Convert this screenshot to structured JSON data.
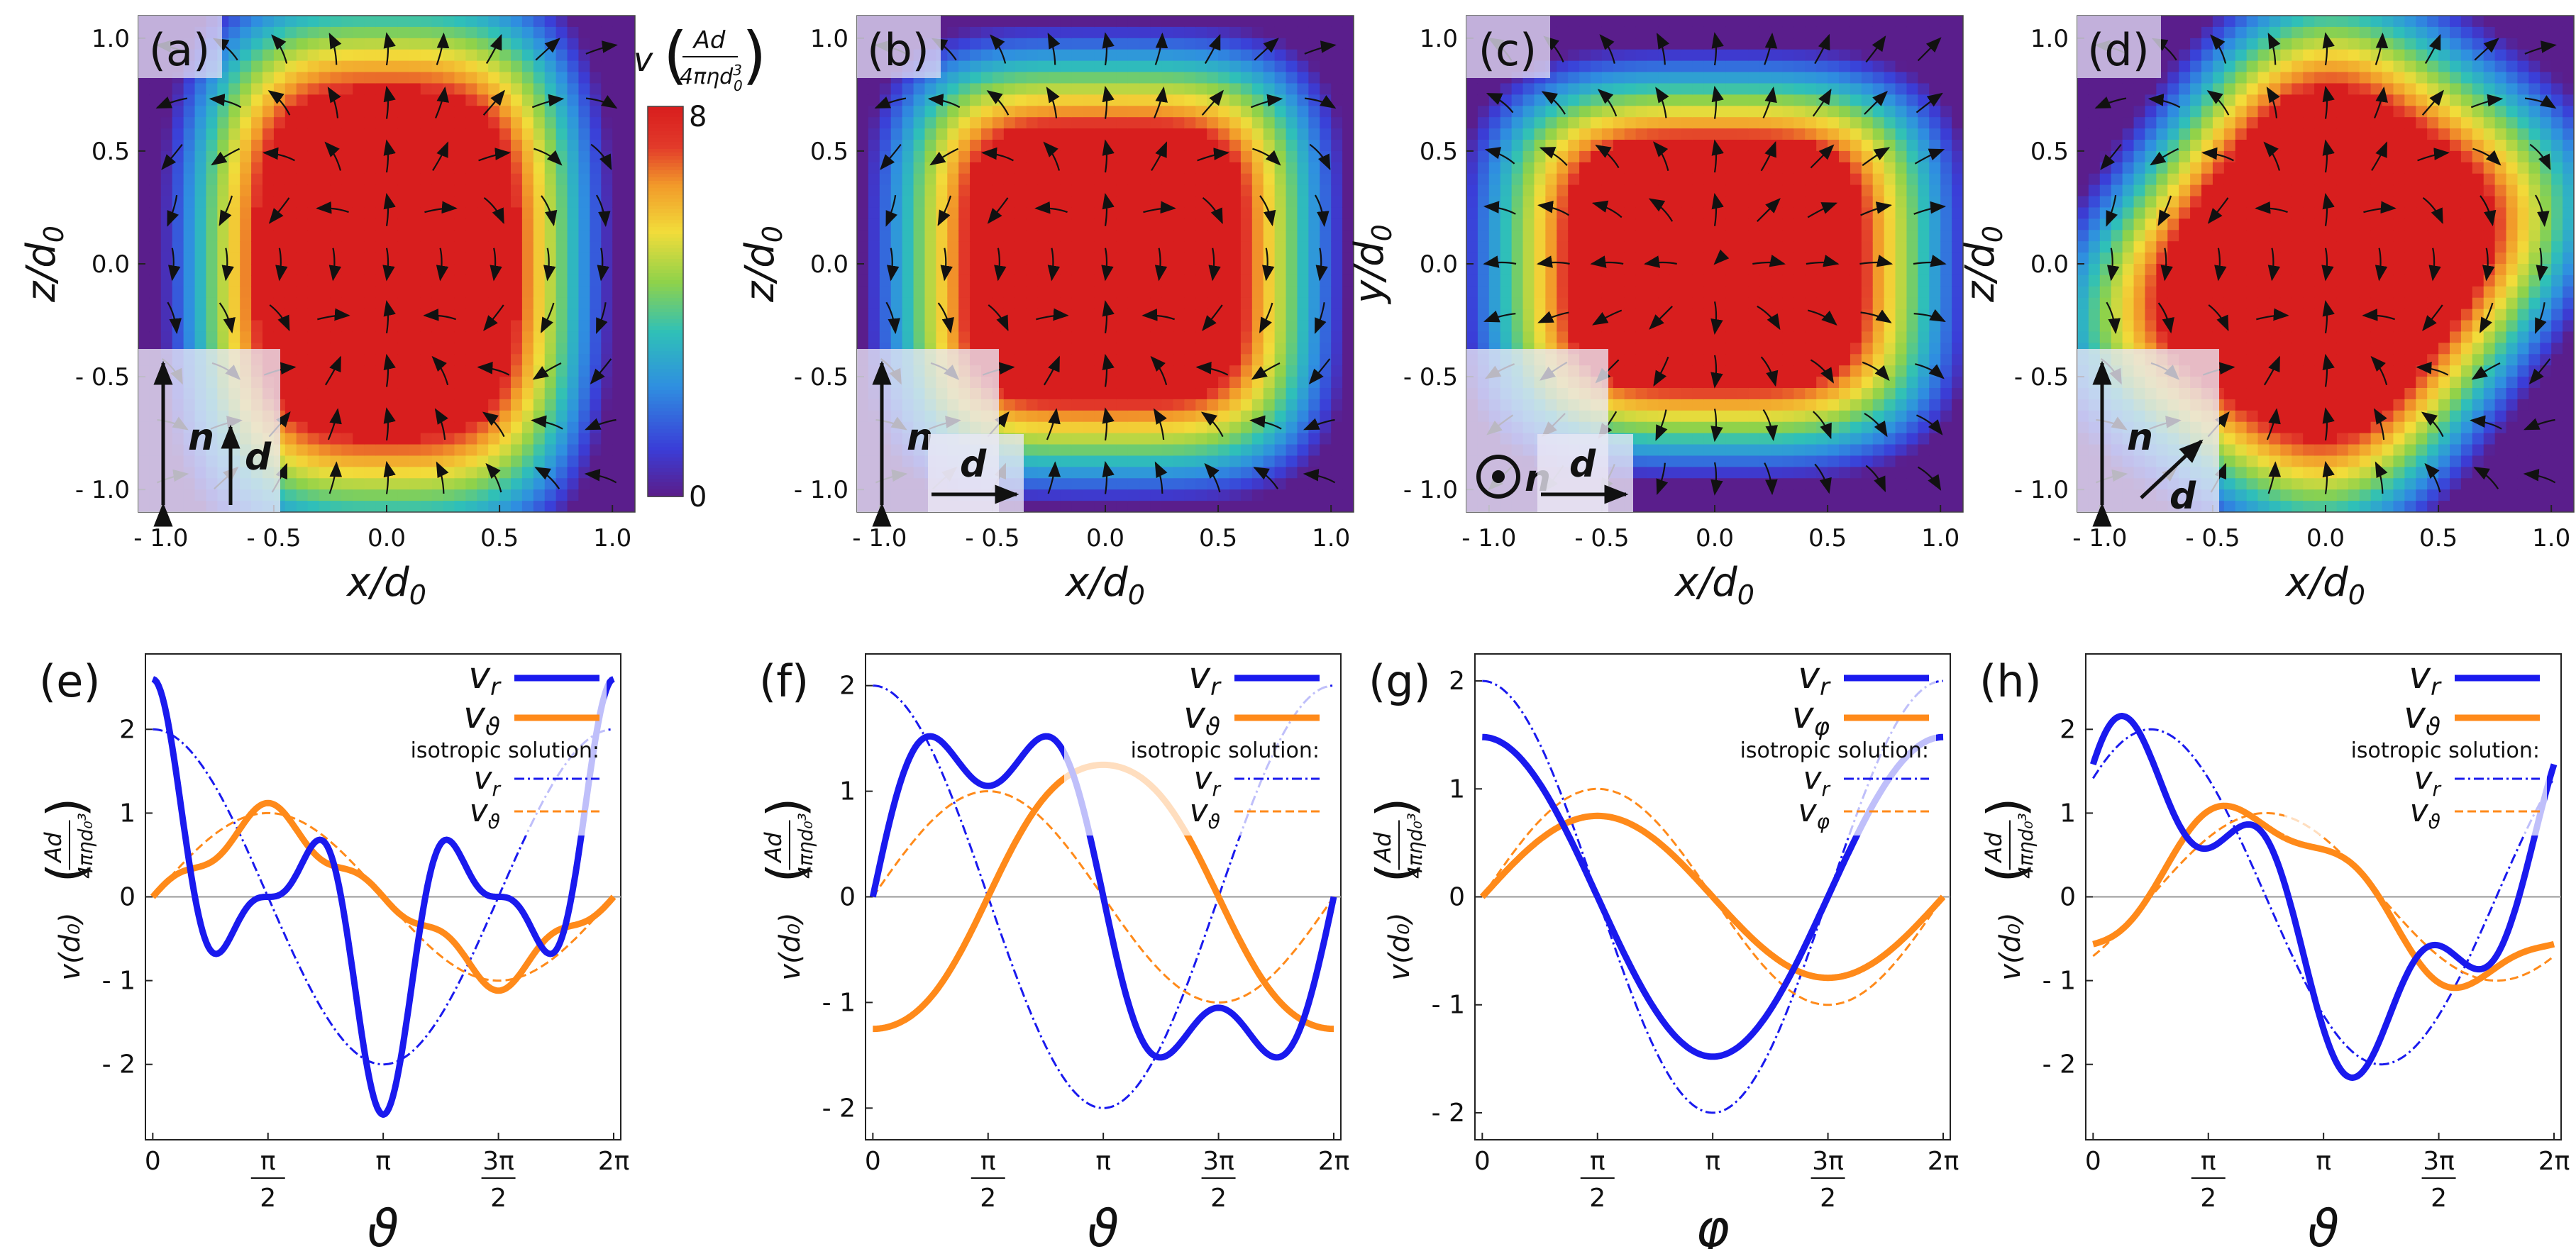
{
  "colors": {
    "vr": "#1a1aee",
    "vtheta": "#ff8a1a",
    "arrow": "#111111",
    "cmap": [
      "#5a1e8c",
      "#3a3ed8",
      "#2f8fe0",
      "#2fc0b8",
      "#8fd24a",
      "#f2dc3a",
      "#f29a2a",
      "#e23a2a",
      "#d81e1e"
    ]
  },
  "colorbar": {
    "label_v": "v",
    "label_num": "Ad",
    "label_den": "4πηd",
    "label_den_sup": "3",
    "label_den_sub": "0",
    "max_label": "8",
    "min_label": "0",
    "max_value": 8,
    "min_value": 0
  },
  "heatmaps": [
    {
      "label": "(a)",
      "ylabel": "z/d",
      "ylabel_sub": "0",
      "xlabel": "x/d",
      "xlabel_sub": "0",
      "blob": {
        "rx": 0.58,
        "ry": 0.78,
        "p": 3.2,
        "rot_deg": 0
      },
      "pattern": "a",
      "inset": {
        "n_label": "n",
        "d_label": "d",
        "n_dir": "z",
        "d_dir": "z"
      }
    },
    {
      "label": "(b)",
      "ylabel": "z/d",
      "ylabel_sub": "0",
      "xlabel": "x/d",
      "xlabel_sub": "0",
      "blob": {
        "rx": 0.62,
        "ry": 0.62,
        "p": 4.0,
        "rot_deg": 0
      },
      "pattern": "b",
      "inset": {
        "n_label": "n",
        "d_label": "d",
        "n_dir": "z",
        "d_dir": "x"
      }
    },
    {
      "label": "(c)",
      "ylabel": "y/d",
      "ylabel_sub": "0",
      "xlabel": "x/d",
      "xlabel_sub": "0",
      "blob": {
        "rx": 0.66,
        "ry": 0.56,
        "p": 3.6,
        "rot_deg": 0
      },
      "pattern": "c",
      "inset": {
        "n_label": "n",
        "d_label": "d",
        "n_dir": "out",
        "d_dir": "x"
      }
    },
    {
      "label": "(d)",
      "ylabel": "z/d",
      "ylabel_sub": "0",
      "xlabel": "x/d",
      "xlabel_sub": "0",
      "blob": {
        "rx": 0.62,
        "ry": 0.74,
        "p": 3.2,
        "rot_deg": -35
      },
      "pattern": "d",
      "inset": {
        "n_label": "n",
        "d_label": "d",
        "n_dir": "z",
        "d_dir": "diag"
      }
    }
  ],
  "heatmap_axes": {
    "xlim": [
      -1.1,
      1.1
    ],
    "ylim": [
      -1.1,
      1.1
    ],
    "xticks": [
      -1.0,
      -0.5,
      0.0,
      0.5,
      1.0
    ],
    "xtick_labels": [
      "- 1.0",
      "- 0.5",
      "0.0",
      "0.5",
      "1.0"
    ],
    "yticks": [
      1.0,
      0.5,
      0.0,
      -0.5,
      -1.0
    ],
    "ytick_labels": [
      "1.0",
      "0.5",
      "0.0",
      "- 0.5",
      "- 1.0"
    ]
  },
  "chart_data": [
    {
      "type": "line",
      "label": "(e)",
      "xlabel": "ϑ",
      "ylabel": "v(d₀)",
      "ylabel_frac_num": "Ad",
      "ylabel_frac_den": "4πηd₀³",
      "ylim": [
        -2.9,
        2.9
      ],
      "xlim": [
        -0.1,
        6.38
      ],
      "yticks": [
        2,
        1,
        0,
        -1,
        -2
      ],
      "ytick_labels": [
        "2",
        "1",
        "0",
        "- 1",
        "- 2"
      ],
      "xtick_labels": [
        "0",
        "π/2",
        "π",
        "3π/2",
        "2π"
      ],
      "legend": {
        "vr": "v",
        "vr_sub": "r",
        "vt": "v",
        "vt_sub": "ϑ",
        "iso_title": "isotropic solution:"
      },
      "series": [
        {
          "name": "v_r",
          "style": "solid",
          "fn": [
            0.9,
            0,
            0,
            0,
            1.15,
            0,
            0,
            0,
            0.55,
            0,
            0
          ],
          "parity": "cos"
        },
        {
          "name": "v_ϑ",
          "style": "solid",
          "fn": [
            0,
            0.85,
            0,
            0,
            0,
            0,
            0,
            0,
            0,
            0,
            0
          ],
          "extra": [
            [
              3,
              -0.2
            ],
            [
              5,
              0.05
            ]
          ],
          "parity": "sin"
        },
        {
          "name": "isotropic v_r",
          "style": "dash",
          "parity": "cos",
          "amp": 2.0
        },
        {
          "name": "isotropic v_ϑ",
          "style": "dash",
          "parity": "sin",
          "amp": 1.0
        }
      ]
    },
    {
      "type": "line",
      "label": "(f)",
      "xlabel": "ϑ",
      "ylabel": "v(d₀)",
      "ylabel_frac_num": "Ad",
      "ylabel_frac_den": "4πηd₀³",
      "ylim": [
        -2.3,
        2.3
      ],
      "xlim": [
        -0.1,
        6.38
      ],
      "yticks": [
        2,
        1,
        0,
        -1,
        -2
      ],
      "ytick_labels": [
        "2",
        "1",
        "0",
        "- 1",
        "- 2"
      ],
      "xtick_labels": [
        "0",
        "π/2",
        "π",
        "3π/2",
        "2π"
      ],
      "legend": {
        "vr": "v",
        "vr_sub": "r",
        "vt": "v",
        "vt_sub": "ϑ",
        "iso_title": "isotropic solution:"
      },
      "series": [
        {
          "name": "v_r",
          "style": "solid"
        },
        {
          "name": "v_ϑ",
          "style": "solid"
        },
        {
          "name": "isotropic v_r",
          "style": "dash",
          "amp": 2.0
        },
        {
          "name": "isotropic v_ϑ",
          "style": "dash",
          "amp": 1.0
        }
      ]
    },
    {
      "type": "line",
      "label": "(g)",
      "xlabel": "φ",
      "ylabel": "v(d₀)",
      "ylabel_frac_num": "Ad",
      "ylabel_frac_den": "4πηd₀³",
      "ylim": [
        -2.25,
        2.25
      ],
      "xlim": [
        -0.1,
        6.38
      ],
      "yticks": [
        2,
        1,
        0,
        -1,
        -2
      ],
      "ytick_labels": [
        "2",
        "1",
        "0",
        "- 1",
        "- 2"
      ],
      "xtick_labels": [
        "0",
        "π/2",
        "π",
        "3π/2",
        "2π"
      ],
      "legend": {
        "vr": "v",
        "vr_sub": "r",
        "vt": "v",
        "vt_sub": "φ",
        "iso_title": "isotropic solution:"
      },
      "series": [
        {
          "name": "v_r",
          "style": "solid",
          "amp": 1.48
        },
        {
          "name": "v_φ",
          "style": "solid",
          "amp": 0.75
        },
        {
          "name": "isotropic v_r",
          "style": "dash",
          "amp": 2.0
        },
        {
          "name": "isotropic v_φ",
          "style": "dash",
          "amp": 1.0
        }
      ]
    },
    {
      "type": "line",
      "label": "(h)",
      "xlabel": "ϑ",
      "ylabel": "v(d₀)",
      "ylabel_frac_num": "Ad",
      "ylabel_frac_den": "4πηd₀³",
      "ylim": [
        -2.9,
        2.9
      ],
      "xlim": [
        -0.1,
        6.38
      ],
      "yticks": [
        2,
        1,
        0,
        -1,
        -2
      ],
      "ytick_labels": [
        "2",
        "1",
        "0",
        "- 1",
        "- 2"
      ],
      "xtick_labels": [
        "0",
        "π/2",
        "π",
        "3π/2",
        "2π"
      ],
      "legend": {
        "vr": "v",
        "vr_sub": "r",
        "vt": "v",
        "vt_sub": "ϑ",
        "iso_title": "isotropic solution:"
      },
      "series": [
        {
          "name": "v_r",
          "style": "solid"
        },
        {
          "name": "v_ϑ",
          "style": "solid"
        },
        {
          "name": "isotropic v_r",
          "style": "dash",
          "amp": 2.0,
          "phase": 0.785
        },
        {
          "name": "isotropic v_ϑ",
          "style": "dash",
          "amp": 1.0,
          "phase": 0.785
        }
      ]
    }
  ]
}
